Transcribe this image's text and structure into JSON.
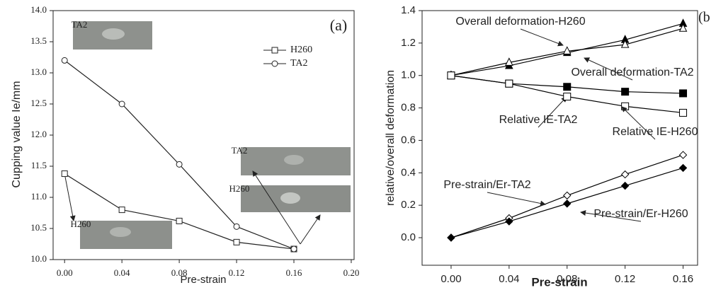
{
  "chart_data": [
    {
      "type": "line",
      "panel_label": "(a)",
      "x_label": "Pre-strain",
      "y_label": "Cupping value Ie/mm",
      "x": [
        0,
        0.04,
        0.08,
        0.12,
        0.16
      ],
      "series": [
        {
          "name": "H260",
          "color": "#222222",
          "marker": "square-open",
          "values": [
            11.38,
            10.8,
            10.62,
            10.28,
            10.17
          ]
        },
        {
          "name": "TA2",
          "color": "#222222",
          "marker": "circle-open",
          "values": [
            13.2,
            12.5,
            11.53,
            10.53,
            10.17
          ]
        }
      ],
      "xlim": [
        -0.008,
        0.202
      ],
      "xticks": [
        {
          "value": 0,
          "label": "0.00"
        },
        0.04,
        0.08,
        0.12,
        0.16,
        {
          "value": 0.2,
          "label": "0.20"
        }
      ],
      "ylim": [
        10.0,
        14.0
      ],
      "yticks": [
        {
          "value": 10,
          "label": "10.0"
        },
        10.5,
        {
          "value": 11,
          "label": "11.0"
        },
        11.5,
        {
          "value": 12,
          "label": "12.0"
        },
        12.5,
        {
          "value": 13,
          "label": "13.0"
        },
        13.5,
        {
          "value": 14,
          "label": "14.0"
        }
      ],
      "annotations": [
        "TA2",
        "H260",
        "TA2",
        "H260"
      ],
      "legend": "upper right",
      "grid": false
    },
    {
      "type": "line",
      "panel_label": "(b",
      "x_label": "Pre-strain",
      "y_label": "relative/overall deformation",
      "x": [
        0,
        0.04,
        0.08,
        0.12,
        0.16
      ],
      "series": [
        {
          "name": "Overall deformation-H260",
          "color": "#000000",
          "marker": "triangle-filled",
          "values": [
            1.0,
            1.06,
            1.14,
            1.22,
            1.32
          ]
        },
        {
          "name": "Overall deformation-TA2",
          "color": "#000000",
          "marker": "triangle-open",
          "values": [
            1.0,
            1.08,
            1.15,
            1.19,
            1.29
          ]
        },
        {
          "name": "Relative IE-TA2",
          "color": "#000000",
          "marker": "square-filled",
          "values": [
            1.0,
            0.95,
            0.93,
            0.9,
            0.89
          ]
        },
        {
          "name": "Relative IE-H260",
          "color": "#000000",
          "marker": "square-open",
          "values": [
            1.0,
            0.95,
            0.87,
            0.81,
            0.77
          ]
        },
        {
          "name": "Pre-strain/Er-TA2",
          "color": "#000000",
          "marker": "diamond-open",
          "values": [
            0,
            0.12,
            0.26,
            0.39,
            0.51
          ]
        },
        {
          "name": "Pre-strain/Er-H260",
          "color": "#000000",
          "marker": "diamond-filled",
          "values": [
            0,
            0.1,
            0.21,
            0.32,
            0.43
          ]
        }
      ],
      "xlim": [
        -0.02,
        0.17
      ],
      "xticks": [
        {
          "value": 0,
          "label": "0.00"
        },
        0.04,
        0.08,
        0.12,
        0.16
      ],
      "ylim": [
        -0.17,
        1.4
      ],
      "yticks": [
        {
          "value": 0,
          "label": "0.0"
        },
        0.2,
        0.4,
        0.6,
        0.8,
        {
          "value": 1,
          "label": "1.0"
        },
        1.2,
        1.4
      ],
      "grid": false
    }
  ]
}
